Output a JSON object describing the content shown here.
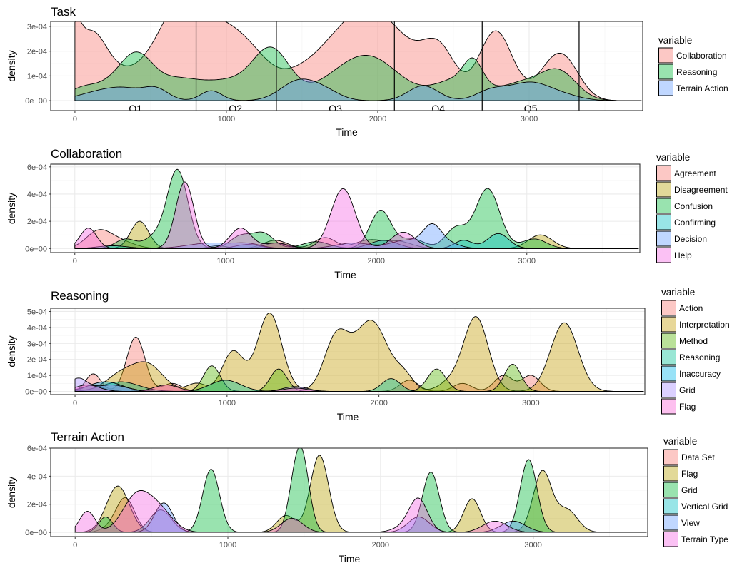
{
  "chart_data": [
    {
      "type": "area",
      "subtype": "density",
      "title": "Task",
      "xlabel": "Time",
      "ylabel": "density",
      "xlim": [
        -160,
        3750
      ],
      "ylim": [
        -4e-05,
        0.00032
      ],
      "xticks": [
        0,
        1000,
        2000,
        3000
      ],
      "xtick_labels": [
        "0",
        "1000",
        "2000",
        "3000"
      ],
      "yticks": [
        0,
        0.0001,
        0.0002,
        0.0003
      ],
      "ytick_labels": [
        "0e+00",
        "1e-04",
        "2e-04",
        "3e-04"
      ],
      "grid": true,
      "legend": {
        "title": "variable",
        "position": "right"
      },
      "vlines": [
        800,
        1330,
        2110,
        2690,
        3330
      ],
      "annotations": [
        "Q1",
        "Q2",
        "Q3",
        "Q4",
        "Q5"
      ],
      "annotation_x": [
        400,
        1060,
        1720,
        2400,
        3010
      ],
      "data_range": [
        0,
        3740
      ],
      "series": [
        {
          "name": "Collaboration",
          "color": "#F8766D",
          "peaks": [
            [
              0,
              0.00014,
              40
            ],
            [
              100,
              0.00026,
              110
            ],
            [
              380,
              0.00011,
              150
            ],
            [
              560,
              0.00011,
              100
            ],
            [
              710,
              0.00029,
              110
            ],
            [
              920,
              0.00025,
              140
            ],
            [
              1150,
              0.00017,
              140
            ],
            [
              1520,
              0.00012,
              160
            ],
            [
              1760,
              0.0002,
              130
            ],
            [
              1900,
              0.00013,
              100
            ],
            [
              2050,
              0.00025,
              130
            ],
            [
              2320,
              0.00016,
              150
            ],
            [
              2420,
              0.0001,
              100
            ],
            [
              2780,
              0.00028,
              110
            ],
            [
              3180,
              0.00015,
              120
            ],
            [
              3250,
              5e-05,
              100
            ]
          ]
        },
        {
          "name": "Reasoning",
          "color": "#00BA38",
          "peaks": [
            [
              30,
              2e-05,
              80
            ],
            [
              200,
              6e-05,
              160
            ],
            [
              410,
              0.00016,
              110
            ],
            [
              660,
              6e-05,
              130
            ],
            [
              1000,
              8e-05,
              220
            ],
            [
              1300,
              0.00018,
              120
            ],
            [
              1800,
              0.0001,
              200
            ],
            [
              2000,
              0.00011,
              180
            ],
            [
              2550,
              9e-05,
              170
            ],
            [
              2630,
              9e-05,
              60
            ],
            [
              2950,
              6e-05,
              120
            ],
            [
              3190,
              0.00012,
              120
            ]
          ]
        },
        {
          "name": "Terrain Action",
          "color": "#619CFF",
          "peaks": [
            [
              100,
              2e-05,
              120
            ],
            [
              320,
              5e-05,
              140
            ],
            [
              540,
              4e-05,
              80
            ],
            [
              900,
              4e-05,
              70
            ],
            [
              1480,
              8e-05,
              120
            ],
            [
              1660,
              3e-05,
              100
            ],
            [
              2300,
              6e-05,
              100
            ],
            [
              2750,
              4e-05,
              100
            ],
            [
              3000,
              7e-05,
              130
            ],
            [
              3220,
              2e-05,
              120
            ]
          ]
        }
      ]
    },
    {
      "type": "area",
      "subtype": "density",
      "title": "Collaboration",
      "xlabel": "Time",
      "ylabel": "density",
      "xlim": [
        -160,
        3750
      ],
      "ylim": [
        -3e-05,
        0.00062
      ],
      "xticks": [
        0,
        1000,
        2000,
        3000
      ],
      "xtick_labels": [
        "0",
        "1000",
        "2000",
        "3000"
      ],
      "yticks": [
        0,
        0.0002,
        0.0004,
        0.0006
      ],
      "ytick_labels": [
        "0e+00",
        "2e-04",
        "4e-04",
        "6e-04"
      ],
      "grid": true,
      "legend": {
        "title": "variable",
        "position": "right"
      },
      "data_range": [
        0,
        3740
      ],
      "series": [
        {
          "name": "Agreement",
          "color": "#F8766D",
          "peaks": [
            [
              150,
              0.00011,
              80
            ],
            [
              280,
              6e-05,
              100
            ],
            [
              1330,
              6e-05,
              80
            ],
            [
              1660,
              8e-05,
              70
            ],
            [
              1950,
              6e-05,
              90
            ],
            [
              2150,
              5e-05,
              90
            ]
          ]
        },
        {
          "name": "Disagreement",
          "color": "#B79F00",
          "peaks": [
            [
              430,
              0.0002,
              60
            ],
            [
              950,
              2e-05,
              60
            ],
            [
              1330,
              4e-05,
              70
            ],
            [
              3090,
              0.0001,
              80
            ]
          ]
        },
        {
          "name": "Confusion",
          "color": "#00BA38",
          "peaks": [
            [
              340,
              7e-05,
              70
            ],
            [
              520,
              7e-05,
              60
            ],
            [
              680,
              0.00058,
              70
            ],
            [
              1100,
              9e-05,
              70
            ],
            [
              1250,
              0.00011,
              70
            ],
            [
              1600,
              5e-05,
              90
            ],
            [
              2030,
              0.00028,
              70
            ],
            [
              2240,
              7e-05,
              80
            ],
            [
              2530,
              0.00015,
              70
            ],
            [
              2740,
              0.00044,
              80
            ],
            [
              3050,
              7e-05,
              80
            ]
          ]
        },
        {
          "name": "Confirming",
          "color": "#00BFC4",
          "peaks": [
            [
              250,
              2e-05,
              100
            ],
            [
              1150,
              3e-05,
              80
            ],
            [
              2050,
              6e-05,
              90
            ],
            [
              2580,
              6e-05,
              60
            ],
            [
              2810,
              0.00011,
              70
            ]
          ]
        },
        {
          "name": "Decision",
          "color": "#619CFF",
          "peaks": [
            [
              900,
              4e-05,
              150
            ],
            [
              1150,
              3e-05,
              90
            ],
            [
              1850,
              4e-05,
              120
            ],
            [
              2200,
              6e-05,
              100
            ],
            [
              2370,
              0.00015,
              60
            ],
            [
              2470,
              4e-05,
              80
            ]
          ]
        },
        {
          "name": "Help",
          "color": "#F564E3",
          "peaks": [
            [
              90,
              0.00015,
              55
            ],
            [
              730,
              0.00049,
              60
            ],
            [
              1100,
              0.00015,
              70
            ],
            [
              1340,
              4e-05,
              80
            ],
            [
              1780,
              0.00044,
              80
            ],
            [
              2180,
              0.00012,
              80
            ]
          ]
        }
      ]
    },
    {
      "type": "area",
      "subtype": "density",
      "title": "Reasoning",
      "xlabel": "Time",
      "ylabel": "density",
      "xlim": [
        -160,
        3750
      ],
      "ylim": [
        -2e-05,
        0.00052
      ],
      "xticks": [
        0,
        1000,
        2000,
        3000
      ],
      "xtick_labels": [
        "0",
        "1000",
        "2000",
        "3000"
      ],
      "yticks": [
        0,
        0.0001,
        0.0002,
        0.0003,
        0.0004,
        0.0005
      ],
      "ytick_labels": [
        "0e+00",
        "1e-04",
        "2e-04",
        "3e-04",
        "4e-04",
        "5e-04"
      ],
      "grid": true,
      "legend": {
        "title": "variable",
        "position": "right"
      },
      "data_range": [
        0,
        3740
      ],
      "series": [
        {
          "name": "Action",
          "color": "#F8766D",
          "peaks": [
            [
              120,
              0.00011,
              50
            ],
            [
              400,
              0.00034,
              60
            ],
            [
              640,
              5e-05,
              60
            ],
            [
              2200,
              7e-05,
              60
            ],
            [
              2550,
              5e-05,
              60
            ],
            [
              2820,
              0.0001,
              60
            ],
            [
              3000,
              0.0001,
              60
            ]
          ]
        },
        {
          "name": "Interpretation",
          "color": "#C49A00",
          "peaks": [
            [
              300,
              0.0001,
              100
            ],
            [
              480,
              0.00016,
              100
            ],
            [
              800,
              5e-05,
              60
            ],
            [
              1040,
              0.00025,
              70
            ],
            [
              1280,
              0.00049,
              80
            ],
            [
              1720,
              0.00033,
              80
            ],
            [
              1950,
              0.00044,
              110
            ],
            [
              2170,
              8e-05,
              60
            ],
            [
              2640,
              0.00046,
              80
            ],
            [
              3220,
              0.00043,
              90
            ],
            [
              2480,
              6e-05,
              80
            ]
          ]
        },
        {
          "name": "Method",
          "color": "#53B400",
          "peaks": [
            [
              120,
              4e-05,
              60
            ],
            [
              900,
              0.00016,
              55
            ],
            [
              1340,
              0.00014,
              55
            ],
            [
              2380,
              0.00014,
              60
            ],
            [
              2880,
              0.00017,
              55
            ]
          ]
        },
        {
          "name": "Reasoning",
          "color": "#00C094",
          "peaks": [
            [
              300,
              6e-05,
              120
            ],
            [
              990,
              7e-05,
              100
            ],
            [
              2080,
              8e-05,
              60
            ]
          ]
        },
        {
          "name": "Inaccuracy",
          "color": "#00B6EB",
          "peaks": [
            [
              200,
              6e-05,
              110
            ]
          ]
        },
        {
          "name": "Grid",
          "color": "#A58AFF",
          "peaks": [
            [
              20,
              8e-05,
              60
            ],
            [
              240,
              4e-05,
              100
            ],
            [
              1450,
              3e-05,
              80
            ]
          ]
        },
        {
          "name": "Flag",
          "color": "#FB61D7",
          "peaks": [
            [
              80,
              4e-05,
              80
            ],
            [
              600,
              4e-05,
              80
            ],
            [
              1450,
              2e-05,
              80
            ]
          ]
        }
      ]
    },
    {
      "type": "area",
      "subtype": "density",
      "title": "Terrain Action",
      "xlabel": "Time",
      "ylabel": "density",
      "xlim": [
        -160,
        3750
      ],
      "ylim": [
        -3e-05,
        0.0006
      ],
      "xticks": [
        0,
        1000,
        2000,
        3000
      ],
      "xtick_labels": [
        "0",
        "1000",
        "2000",
        "3000"
      ],
      "yticks": [
        0,
        0.0002,
        0.0004,
        0.0006
      ],
      "ytick_labels": [
        "0e+00",
        "2e-04",
        "4e-04",
        "6e-04"
      ],
      "grid": true,
      "legend": {
        "title": "variable",
        "position": "right"
      },
      "data_range": [
        0,
        3740
      ],
      "series": [
        {
          "name": "Data Set",
          "color": "#F8766D",
          "peaks": [
            [
              330,
              0.00024,
              60
            ],
            [
              230,
              3e-05,
              60
            ]
          ]
        },
        {
          "name": "Flag",
          "color": "#B79F00",
          "peaks": [
            [
              280,
              0.00033,
              75
            ],
            [
              1380,
              0.00012,
              60
            ],
            [
              1600,
              0.00055,
              60
            ],
            [
              2600,
              0.00024,
              55
            ],
            [
              3060,
              0.00043,
              60
            ],
            [
              3220,
              0.00016,
              70
            ]
          ]
        },
        {
          "name": "Grid",
          "color": "#00BA38",
          "peaks": [
            [
              200,
              0.00011,
              45
            ],
            [
              890,
              0.00045,
              55
            ],
            [
              1480,
              0.00057,
              50
            ],
            [
              1420,
              0.00012,
              40
            ],
            [
              2330,
              0.00043,
              55
            ],
            [
              2970,
              0.00052,
              55
            ]
          ]
        },
        {
          "name": "Vertical Grid",
          "color": "#00BFC4",
          "peaks": [
            [
              560,
              0.00016,
              70
            ]
          ]
        },
        {
          "name": "View",
          "color": "#619CFF",
          "peaks": [
            [
              580,
              0.00021,
              60
            ],
            [
              2250,
              0.00011,
              70
            ],
            [
              2870,
              8e-05,
              80
            ]
          ]
        },
        {
          "name": "Terrain Type",
          "color": "#F564E3",
          "peaks": [
            [
              80,
              0.00015,
              50
            ],
            [
              400,
              0.00025,
              90
            ],
            [
              550,
              0.00015,
              90
            ],
            [
              1420,
              0.0001,
              70
            ],
            [
              2250,
              0.00022,
              60
            ],
            [
              2170,
              4e-05,
              80
            ],
            [
              2750,
              8e-05,
              80
            ]
          ]
        }
      ]
    }
  ]
}
